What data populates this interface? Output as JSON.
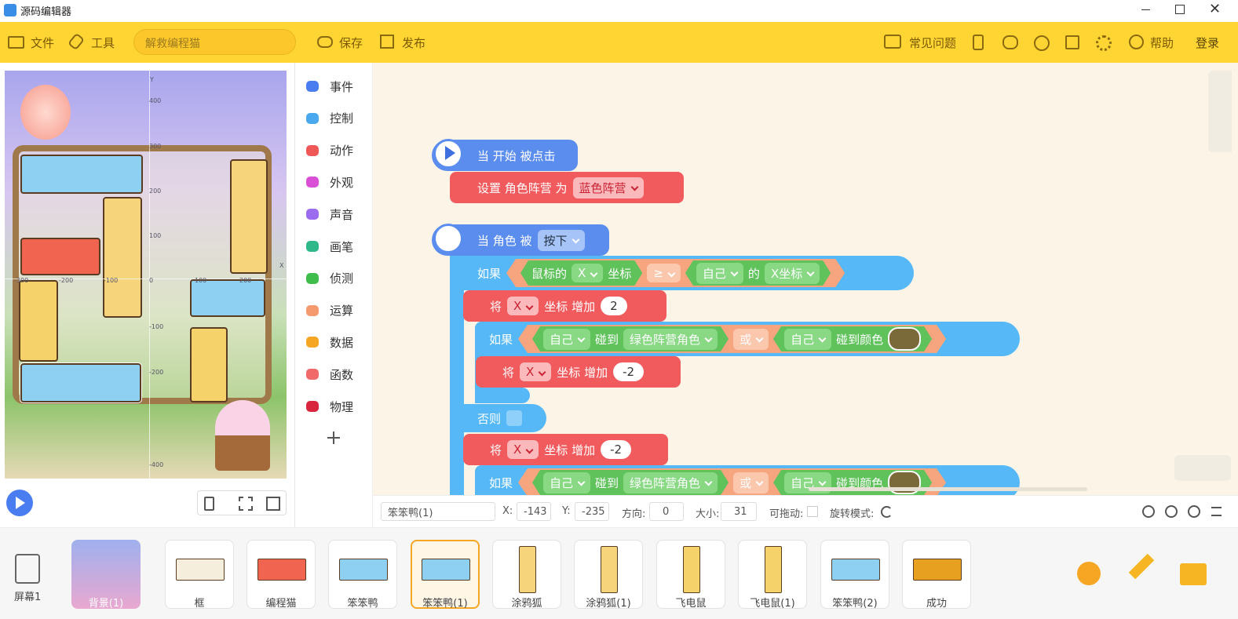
{
  "window_title": "源码编辑器",
  "toolbar": {
    "file": "文件",
    "tools": "工具",
    "project_name": "解救编程猫",
    "save": "保存",
    "publish": "发布",
    "faq": "常见问题",
    "help": "帮助",
    "login": "登录"
  },
  "stage_axis": {
    "y_label": "Y",
    "x_label": "X",
    "y_ticks": [
      "400",
      "300",
      "200",
      "100",
      "-100",
      "-200",
      "-400"
    ],
    "x_ticks": [
      "-300",
      "-200",
      "-100",
      "0",
      "100",
      "200"
    ]
  },
  "categories": [
    "事件",
    "控制",
    "动作",
    "外观",
    "声音",
    "画笔",
    "侦测",
    "运算",
    "数据",
    "函数",
    "物理"
  ],
  "code": [
    [
      "当 开始 被点击"
    ],
    [
      "设置 角色阵营 为",
      "蓝色阵营"
    ],
    [
      "当 角色 被",
      "按下"
    ],
    [
      "如果",
      "鼠标的",
      "X",
      "坐标",
      "≥",
      "自己",
      "的",
      "X坐标"
    ],
    [
      "将",
      "X",
      "坐标 增加",
      "2"
    ],
    [
      "如果",
      "自己",
      "碰到",
      "绿色阵营角色",
      "或",
      "自己",
      "碰到颜色"
    ],
    [
      "将",
      "X",
      "坐标 增加",
      "-2"
    ],
    [
      "否则"
    ],
    [
      "将",
      "X",
      "坐标 增加",
      "-2"
    ],
    [
      "如果",
      "自己",
      "碰到",
      "绿色阵营角色",
      "或",
      "自己",
      "碰到颜色"
    ]
  ],
  "properties": {
    "sprite_name": "笨笨鸭(1)",
    "x_label": "X:",
    "x": "-143",
    "y_label": "Y:",
    "y": "-235",
    "direction_label": "方向:",
    "direction": "0",
    "size_label": "大小:",
    "size": "31",
    "draggable_label": "可拖动:",
    "rotation_label": "旋转模式:"
  },
  "screen": "屏幕1",
  "background": "背景(1)",
  "sprites": [
    "框",
    "编程猫",
    "笨笨鸭",
    "笨笨鸭(1)",
    "涂鸦狐",
    "涂鸦狐(1)",
    "飞电鼠",
    "飞电鼠(1)",
    "笨笨鸭(2)",
    "成功"
  ]
}
